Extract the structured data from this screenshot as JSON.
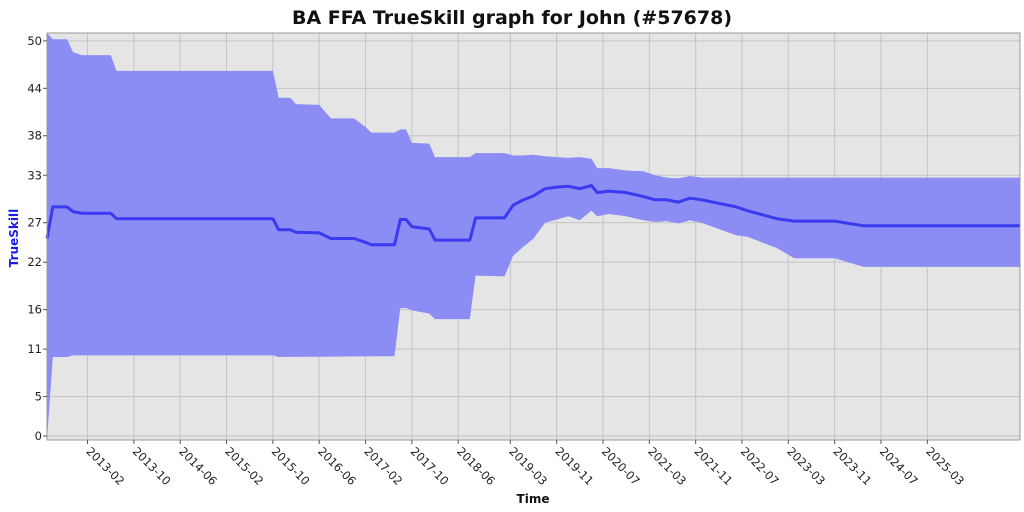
{
  "chart_data": {
    "type": "area",
    "title": "BA FFA TrueSkill graph for John (#57678)",
    "xlabel": "Time",
    "ylabel": "TrueSkill",
    "y_ticks": [
      0,
      5,
      11,
      16,
      22,
      27,
      33,
      38,
      44,
      50
    ],
    "ylim": [
      -0.5,
      51
    ],
    "x_ticks": [
      "2013-02",
      "2013-10",
      "2014-06",
      "2015-02",
      "2015-10",
      "2016-06",
      "2017-02",
      "2017-10",
      "2018-06",
      "2019-03",
      "2019-11",
      "2020-07",
      "2021-03",
      "2021-11",
      "2022-07",
      "2023-03",
      "2023-11",
      "2024-07",
      "2025-03"
    ],
    "xlim": [
      "2012-07",
      "2026-07"
    ],
    "grid": true,
    "colors": {
      "band": "#8c8cf5",
      "line": "#3a3aee",
      "plot_background": "#e5e5e5",
      "grid": "#c4c4c4"
    },
    "series": [
      {
        "role": "mean",
        "points": [
          [
            "2012-07-01",
            25.0
          ],
          [
            "2012-08-01",
            29.0
          ],
          [
            "2012-10-15",
            29.0
          ],
          [
            "2012-11-15",
            28.4
          ],
          [
            "2013-01-01",
            28.2
          ],
          [
            "2013-06-01",
            28.2
          ],
          [
            "2013-07-01",
            27.5
          ],
          [
            "2014-01-01",
            27.5
          ],
          [
            "2015-10-01",
            27.5
          ],
          [
            "2015-11-01",
            26.1
          ],
          [
            "2016-01-01",
            26.1
          ],
          [
            "2016-02-01",
            25.8
          ],
          [
            "2016-06-01",
            25.7
          ],
          [
            "2016-08-01",
            25.0
          ],
          [
            "2016-12-01",
            25.0
          ],
          [
            "2017-02-01",
            24.5
          ],
          [
            "2017-03-01",
            24.2
          ],
          [
            "2017-07-01",
            24.2
          ],
          [
            "2017-08-01",
            27.4
          ],
          [
            "2017-09-01",
            27.4
          ],
          [
            "2017-10-01",
            26.5
          ],
          [
            "2018-01-01",
            26.2
          ],
          [
            "2018-02-01",
            24.8
          ],
          [
            "2018-08-01",
            24.8
          ],
          [
            "2018-09-01",
            27.6
          ],
          [
            "2019-02-01",
            27.6
          ],
          [
            "2019-03-15",
            29.2
          ],
          [
            "2019-05-01",
            29.8
          ],
          [
            "2019-07-01",
            30.4
          ],
          [
            "2019-09-01",
            31.3
          ],
          [
            "2019-11-01",
            31.5
          ],
          [
            "2020-01-01",
            31.6
          ],
          [
            "2020-03-01",
            31.3
          ],
          [
            "2020-05-01",
            31.7
          ],
          [
            "2020-06-01",
            30.8
          ],
          [
            "2020-08-01",
            31.0
          ],
          [
            "2020-11-01",
            30.8
          ],
          [
            "2021-02-01",
            30.3
          ],
          [
            "2021-04-01",
            29.9
          ],
          [
            "2021-06-01",
            29.9
          ],
          [
            "2021-08-01",
            29.6
          ],
          [
            "2021-10-01",
            30.1
          ],
          [
            "2021-12-01",
            29.9
          ],
          [
            "2022-06-01",
            29.0
          ],
          [
            "2022-08-01",
            28.5
          ],
          [
            "2023-01-01",
            27.5
          ],
          [
            "2023-04-01",
            27.2
          ],
          [
            "2023-11-01",
            27.2
          ],
          [
            "2024-04-01",
            26.6
          ],
          [
            "2026-07-01",
            26.6
          ]
        ]
      },
      {
        "role": "upper",
        "points": [
          [
            "2012-07-01",
            51.0
          ],
          [
            "2012-08-01",
            50.2
          ],
          [
            "2012-10-15",
            50.2
          ],
          [
            "2012-11-15",
            48.6
          ],
          [
            "2013-01-01",
            48.2
          ],
          [
            "2013-06-01",
            48.2
          ],
          [
            "2013-07-01",
            46.2
          ],
          [
            "2015-10-01",
            46.2
          ],
          [
            "2015-11-01",
            42.8
          ],
          [
            "2016-01-01",
            42.8
          ],
          [
            "2016-02-01",
            42.0
          ],
          [
            "2016-06-01",
            41.9
          ],
          [
            "2016-08-01",
            40.2
          ],
          [
            "2016-12-01",
            40.2
          ],
          [
            "2017-02-01",
            39.1
          ],
          [
            "2017-03-01",
            38.4
          ],
          [
            "2017-07-01",
            38.4
          ],
          [
            "2017-08-01",
            38.8
          ],
          [
            "2017-09-01",
            38.8
          ],
          [
            "2017-10-01",
            37.1
          ],
          [
            "2018-01-01",
            37.0
          ],
          [
            "2018-02-01",
            35.3
          ],
          [
            "2018-08-01",
            35.3
          ],
          [
            "2018-09-01",
            35.8
          ],
          [
            "2019-02-01",
            35.8
          ],
          [
            "2019-03-15",
            35.5
          ],
          [
            "2019-05-01",
            35.5
          ],
          [
            "2019-07-01",
            35.6
          ],
          [
            "2019-09-01",
            35.4
          ],
          [
            "2019-11-01",
            35.3
          ],
          [
            "2020-01-01",
            35.2
          ],
          [
            "2020-03-01",
            35.3
          ],
          [
            "2020-05-01",
            35.1
          ],
          [
            "2020-06-01",
            33.9
          ],
          [
            "2020-08-01",
            33.9
          ],
          [
            "2020-11-01",
            33.6
          ],
          [
            "2021-02-01",
            33.5
          ],
          [
            "2021-04-01",
            33.0
          ],
          [
            "2021-06-01",
            32.7
          ],
          [
            "2021-08-01",
            32.6
          ],
          [
            "2021-10-01",
            32.9
          ],
          [
            "2021-12-01",
            32.7
          ],
          [
            "2026-07-01",
            32.7
          ]
        ]
      },
      {
        "role": "lower",
        "points": [
          [
            "2012-07-01",
            -0.5
          ],
          [
            "2012-08-01",
            10.0
          ],
          [
            "2012-10-15",
            10.0
          ],
          [
            "2012-11-15",
            10.2
          ],
          [
            "2015-10-01",
            10.2
          ],
          [
            "2015-11-01",
            10.0
          ],
          [
            "2017-07-01",
            10.1
          ],
          [
            "2017-08-01",
            16.2
          ],
          [
            "2017-09-01",
            16.2
          ],
          [
            "2017-10-01",
            15.9
          ],
          [
            "2018-01-01",
            15.5
          ],
          [
            "2018-02-01",
            14.8
          ],
          [
            "2018-08-01",
            14.8
          ],
          [
            "2018-09-01",
            20.3
          ],
          [
            "2019-02-01",
            20.2
          ],
          [
            "2019-03-15",
            22.8
          ],
          [
            "2019-05-01",
            23.8
          ],
          [
            "2019-07-01",
            25.0
          ],
          [
            "2019-09-01",
            27.0
          ],
          [
            "2019-11-01",
            27.4
          ],
          [
            "2020-01-01",
            27.8
          ],
          [
            "2020-03-01",
            27.3
          ],
          [
            "2020-05-01",
            28.5
          ],
          [
            "2020-06-01",
            27.8
          ],
          [
            "2020-08-01",
            28.1
          ],
          [
            "2020-11-01",
            27.8
          ],
          [
            "2021-02-01",
            27.3
          ],
          [
            "2021-04-01",
            27.1
          ],
          [
            "2021-06-01",
            27.2
          ],
          [
            "2021-08-01",
            26.9
          ],
          [
            "2021-10-01",
            27.3
          ],
          [
            "2021-12-01",
            27.0
          ],
          [
            "2022-06-01",
            25.4
          ],
          [
            "2022-08-01",
            25.2
          ],
          [
            "2023-01-01",
            23.8
          ],
          [
            "2023-04-01",
            22.5
          ],
          [
            "2023-11-01",
            22.5
          ],
          [
            "2024-04-01",
            21.4
          ],
          [
            "2026-07-01",
            21.4
          ]
        ]
      }
    ]
  }
}
